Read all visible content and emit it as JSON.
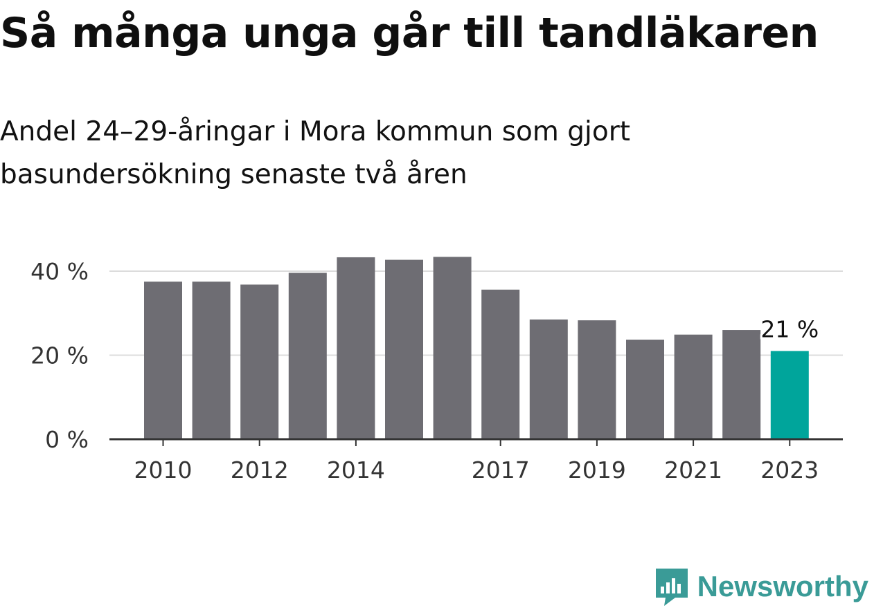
{
  "title": "Så många unga går till tandläkaren",
  "subtitle": "Andel 24–29-åringar i Mora kommun som gjort basundersökning senaste två åren",
  "brand": {
    "name": "Newsworthy",
    "color": "#3a9b97"
  },
  "chart_data": {
    "type": "bar",
    "categories": [
      "2010",
      "2011",
      "2012",
      "2013",
      "2014",
      "2015",
      "2016",
      "2017",
      "2018",
      "2019",
      "2020",
      "2021",
      "2022",
      "2023"
    ],
    "x_tick_labels": [
      "2010",
      "",
      "2012",
      "",
      "2014",
      "",
      "",
      "2017",
      "",
      "2019",
      "",
      "2021",
      "",
      "2023"
    ],
    "values": [
      37.5,
      37.5,
      36.8,
      39.6,
      43.3,
      42.7,
      43.4,
      35.6,
      28.5,
      28.3,
      23.7,
      24.9,
      26.0,
      21.0
    ],
    "y_ticks": [
      0,
      20,
      40
    ],
    "y_tick_labels": [
      "0 %",
      "20 %",
      "40 %"
    ],
    "ylim": [
      0,
      45
    ],
    "grid": true,
    "colors": {
      "default": "#6e6d73",
      "highlight": "#00a59b"
    },
    "highlight_index": 13,
    "data_labels": [
      {
        "index": 13,
        "text": "21 %"
      }
    ]
  }
}
